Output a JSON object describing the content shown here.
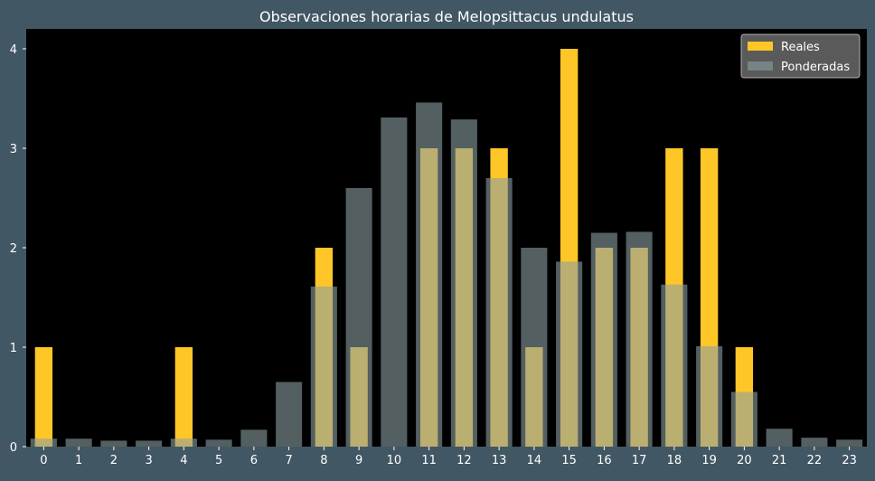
{
  "chart_data": {
    "type": "bar",
    "title": "Observaciones horarias de Melopsittacus undulatus",
    "xlabel": "",
    "ylabel": "",
    "categories": [
      "0",
      "1",
      "2",
      "3",
      "4",
      "5",
      "6",
      "7",
      "8",
      "9",
      "10",
      "11",
      "12",
      "13",
      "14",
      "15",
      "16",
      "17",
      "18",
      "19",
      "20",
      "21",
      "22",
      "23"
    ],
    "ylim": [
      0,
      4.2
    ],
    "yticks": [
      0,
      1,
      2,
      3,
      4
    ],
    "grid": false,
    "legend_position": "top-right",
    "series": [
      {
        "name": "Reales",
        "color": "#ffc627",
        "values": [
          1,
          0,
          0,
          0,
          1,
          0,
          0,
          0,
          2,
          1,
          0,
          3,
          3,
          3,
          1,
          4,
          2,
          2,
          3,
          3,
          1,
          0,
          0,
          0
        ]
      },
      {
        "name": "Ponderadas",
        "color": "#8c9ea4",
        "values": [
          0.08,
          0.08,
          0.06,
          0.06,
          0.08,
          0.07,
          0.17,
          0.65,
          1.61,
          2.6,
          3.31,
          3.46,
          3.29,
          2.7,
          2.0,
          1.86,
          2.15,
          2.16,
          1.63,
          1.01,
          0.55,
          0.18,
          0.09,
          0.07
        ]
      }
    ]
  }
}
